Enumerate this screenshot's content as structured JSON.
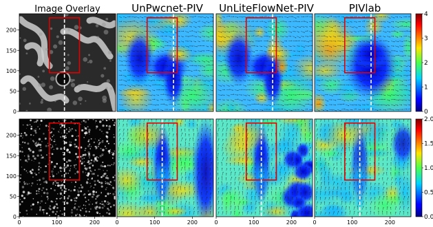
{
  "chart_data": {
    "type": "heatmap",
    "column_titles": [
      "Image Overlay",
      "UnPwcnet-PIV",
      "UnLiteFlowNet-PIV",
      "PIVlab"
    ],
    "xticks": [
      "0",
      "100",
      "200"
    ],
    "yticks": [
      "0",
      "50",
      "100",
      "150",
      "200"
    ],
    "xlim": [
      0,
      256
    ],
    "ylim": [
      0,
      240
    ],
    "rows": [
      {
        "colorbar_ticks": [
          "0",
          "1",
          "2",
          "3",
          "4"
        ],
        "colorbar_range": [
          0,
          4
        ],
        "roi": {
          "x": [
            80,
            160
          ],
          "y": [
            95,
            230
          ]
        },
        "centerline_x": 120,
        "profile_x": [
          120,
          150,
          150,
          150
        ]
      },
      {
        "colorbar_ticks": [
          "0.0",
          "0.5",
          "1.0",
          "1.5",
          "2.0"
        ],
        "colorbar_range": [
          0,
          2
        ],
        "roi": {
          "x": [
            80,
            160
          ],
          "y": [
            90,
            230
          ]
        },
        "centerline_x": 120,
        "profile_x": [
          120,
          120,
          120,
          120
        ]
      }
    ],
    "colormap": "jet",
    "colors": {
      "roi": "#e00000",
      "centerline": "#ffffff"
    }
  }
}
